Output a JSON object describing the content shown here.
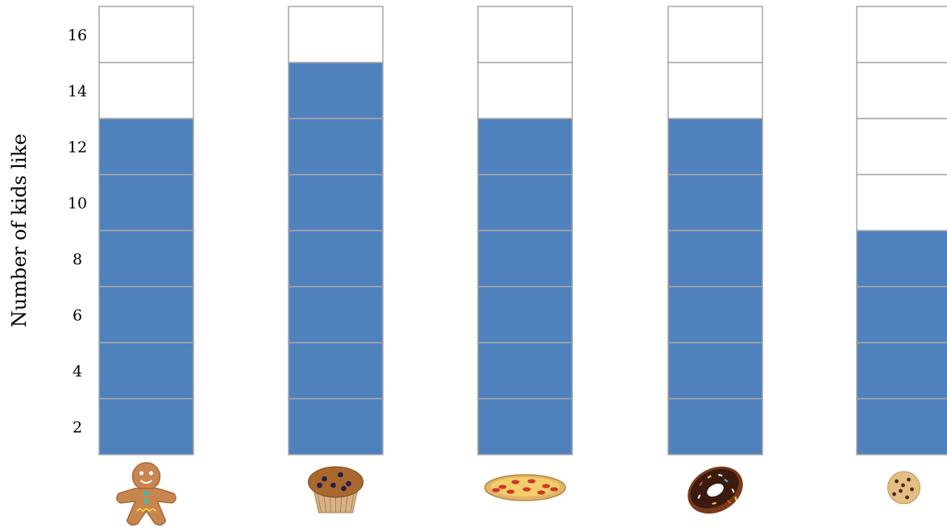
{
  "chart_data": {
    "type": "bar",
    "categories": [
      "gingerbread-man",
      "muffin",
      "pizza",
      "donut",
      "cookie"
    ],
    "values": [
      13,
      15,
      13,
      13,
      9
    ],
    "ylabel": "Number of kids like",
    "xlabel": "",
    "ylim": [
      1,
      17
    ],
    "yticks": [
      "2",
      "4",
      "6",
      "8",
      "10",
      "12",
      "14",
      "16"
    ],
    "grid": true,
    "legend": "none",
    "colors": {
      "bar": "#4f81bd",
      "cell_border": "#a6a6a6",
      "empty_cell": "#ffffff"
    },
    "category_icons": [
      "gingerbread-man-icon",
      "muffin-icon",
      "pizza-icon",
      "donut-icon",
      "cookie-icon"
    ]
  }
}
